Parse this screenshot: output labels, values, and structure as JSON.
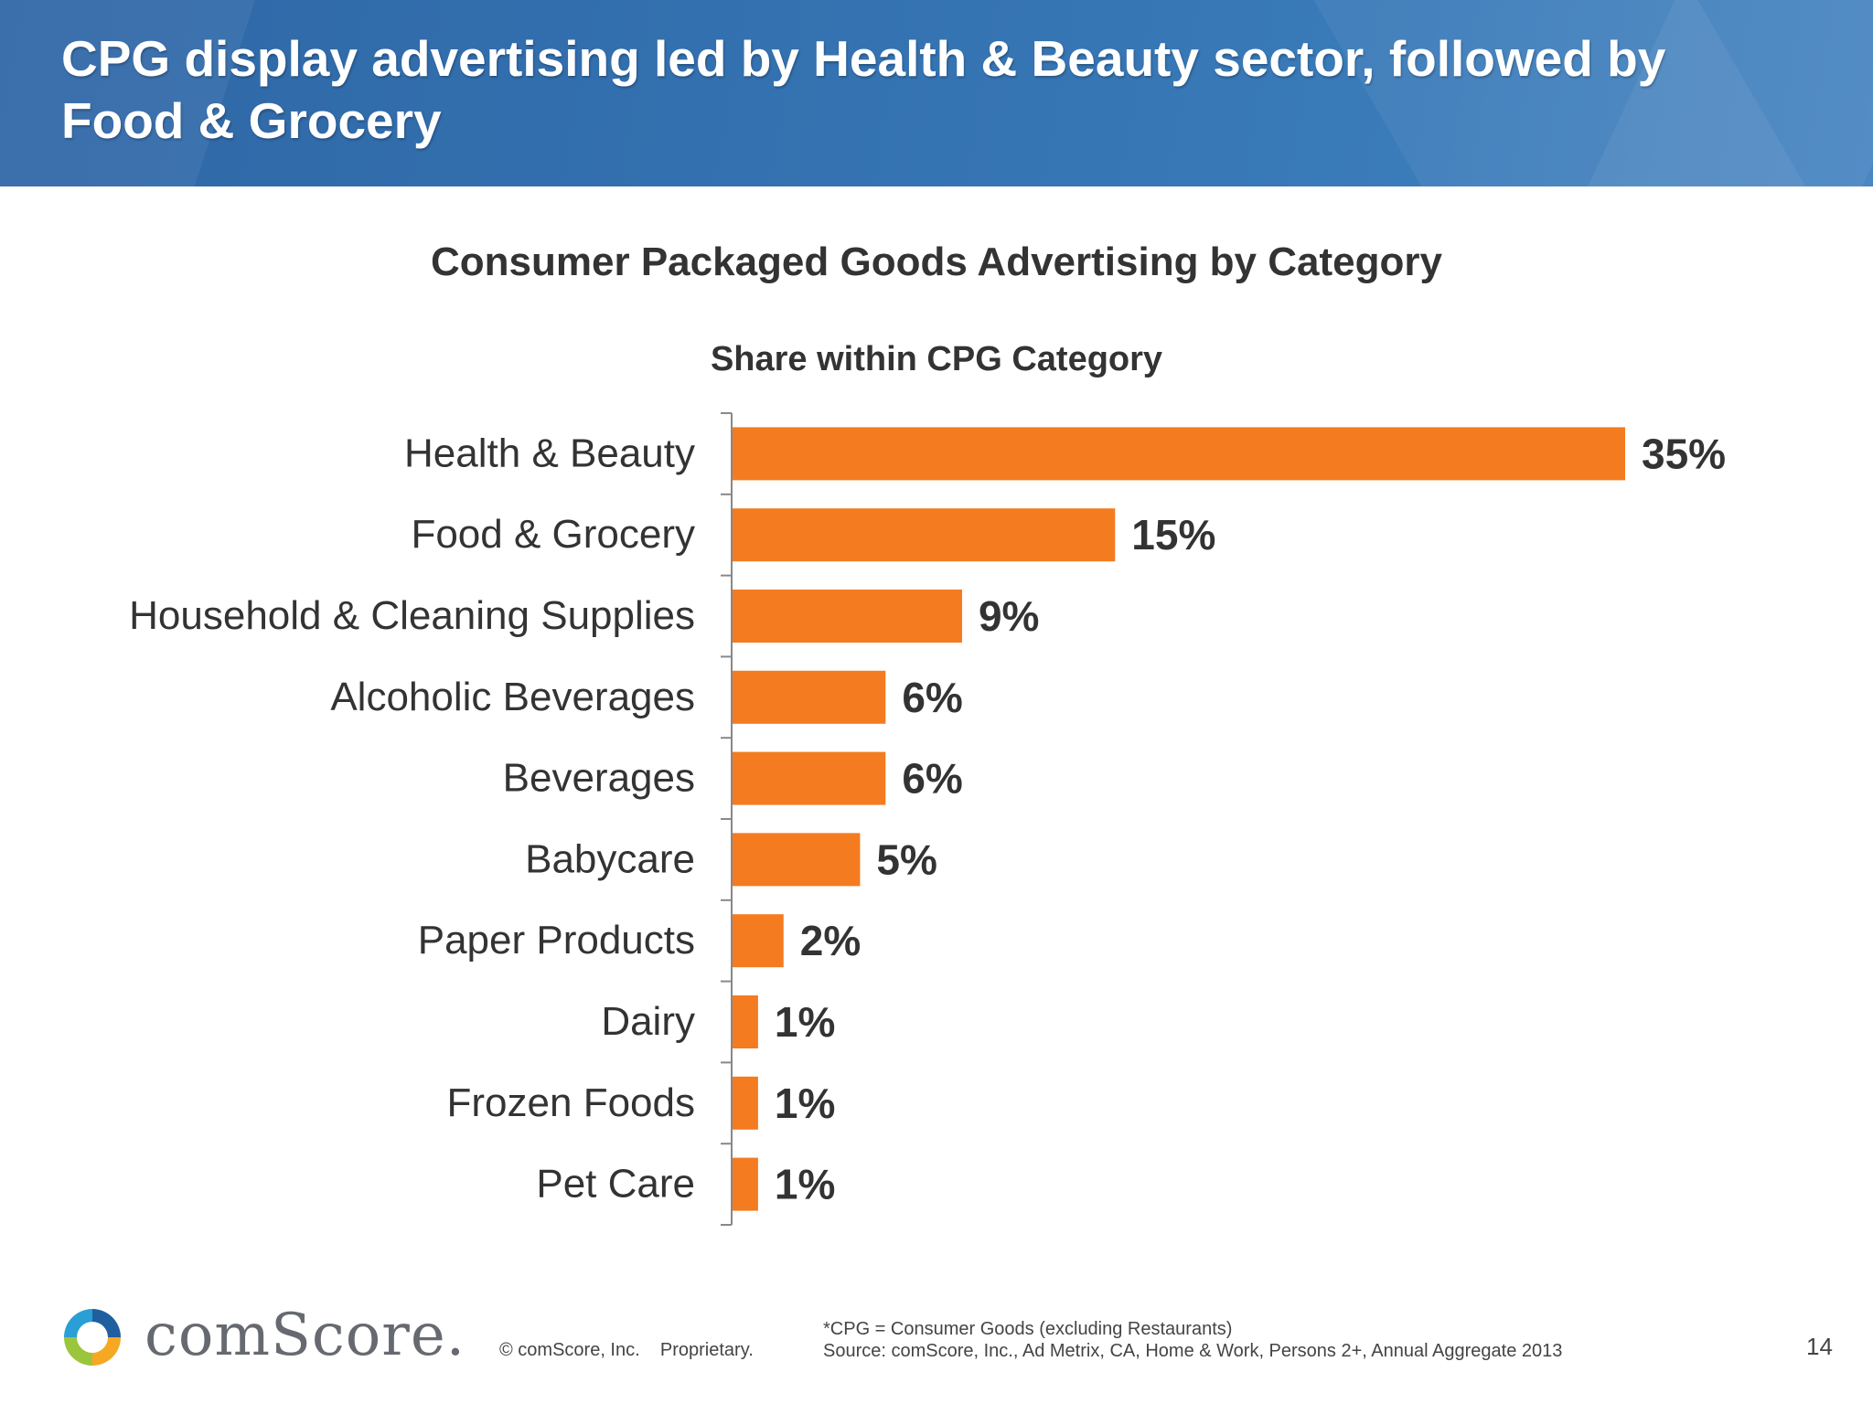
{
  "header": {
    "title": "CPG display advertising led by Health & Beauty sector, followed by Food & Grocery"
  },
  "chart_data": {
    "type": "bar",
    "orientation": "horizontal",
    "title": "Consumer Packaged Goods Advertising by Category",
    "subtitle": "Share within CPG Category",
    "categories": [
      "Health & Beauty",
      "Food & Grocery",
      "Household & Cleaning Supplies",
      "Alcoholic Beverages",
      "Beverages",
      "Babycare",
      "Paper Products",
      "Dairy",
      "Frozen Foods",
      "Pet Care"
    ],
    "values": [
      35,
      15,
      9,
      6,
      6,
      5,
      2,
      1,
      1,
      1
    ],
    "value_labels": [
      "35%",
      "15%",
      "9%",
      "6%",
      "6%",
      "5%",
      "2%",
      "1%",
      "1%",
      "1%"
    ],
    "unit": "%",
    "xlim": [
      0,
      35
    ],
    "grid": false,
    "bar_color": "#f47b20"
  },
  "footer": {
    "logo_text": "comScore.",
    "copyright": "© comScore, Inc.    Proprietary.",
    "note_line1": "*CPG = Consumer Goods (excluding Restaurants)",
    "note_line2": "Source: comScore, Inc., Ad Metrix, CA, Home & Work, Persons 2+, Annual Aggregate 2013",
    "page_number": "14"
  }
}
